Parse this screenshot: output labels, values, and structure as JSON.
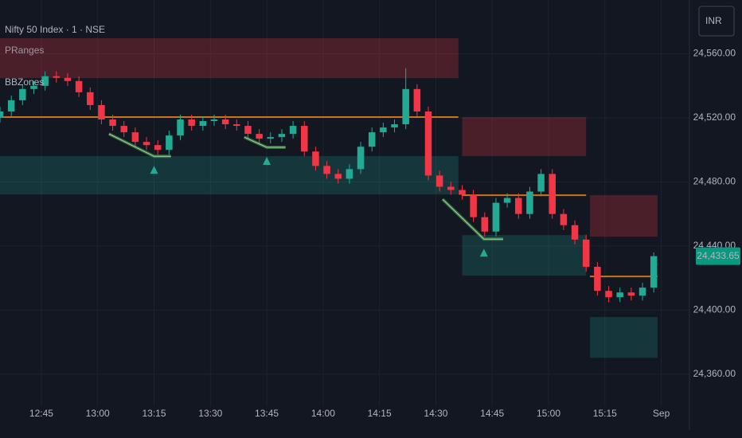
{
  "chart_data": {
    "type": "candlestick",
    "title": "Nifty 50 Index · 1 · NSE",
    "indicators": [
      "PRanges",
      "BBZones"
    ],
    "currency": "INR",
    "up_color": "#22ab94",
    "down_color": "#f23645",
    "x": [
      754,
      757,
      760,
      763,
      766,
      769,
      772,
      775,
      778,
      781,
      784,
      787,
      790,
      793,
      796,
      799,
      802,
      805,
      808,
      811,
      814,
      817,
      820,
      823,
      826,
      829,
      832,
      835,
      838,
      841,
      844,
      847,
      850,
      853,
      856,
      859,
      862,
      865,
      868,
      871,
      874,
      877,
      880,
      883,
      886,
      889,
      892,
      895,
      898,
      901,
      904,
      907,
      910,
      913,
      916,
      919,
      922,
      925,
      928
    ],
    "open": [
      24520,
      24524,
      24531,
      24538,
      24540,
      24546,
      24545,
      24543,
      24536,
      24528,
      24519,
      24515,
      24511,
      24505,
      24503,
      24500,
      24509,
      24519,
      24515,
      24518,
      24519,
      24516,
      24515,
      24510,
      24507,
      24508,
      24510,
      24515,
      24499,
      24490,
      24485,
      24482,
      24488,
      24502,
      24511,
      24514,
      24516,
      24538,
      24524,
      24484,
      24477,
      24475,
      24472,
      24458,
      24449,
      24467,
      24470,
      24460,
      24474,
      24485,
      24460,
      24453,
      24444,
      24427,
      24412,
      24408,
      24411,
      24409,
      24414
    ],
    "high": [
      24527,
      24534,
      24541,
      24543,
      24549,
      24549,
      24548,
      24546,
      24539,
      24531,
      24522,
      24518,
      24514,
      24508,
      24506,
      24512,
      24522,
      24522,
      24521,
      24522,
      24522,
      24519,
      24518,
      24513,
      24511,
      24513,
      24518,
      24518,
      24502,
      24493,
      24488,
      24491,
      24505,
      24514,
      24517,
      24519,
      24551,
      24541,
      24527,
      24487,
      24480,
      24478,
      24475,
      24461,
      24470,
      24473,
      24473,
      24477,
      24488,
      24488,
      24463,
      24456,
      24447,
      24430,
      24415,
      24414,
      24414,
      24417,
      24436
    ],
    "low": [
      24517,
      24521,
      24528,
      24535,
      24537,
      24542,
      24540,
      24533,
      24525,
      24516,
      24512,
      24508,
      24502,
      24500,
      24497,
      24497,
      24506,
      24512,
      24512,
      24515,
      24513,
      24512,
      24507,
      24504,
      24504,
      24505,
      24507,
      24496,
      24487,
      24482,
      24479,
      24479,
      24485,
      24499,
      24508,
      24511,
      24513,
      24521,
      24481,
      24474,
      24472,
      24469,
      24455,
      24446,
      24446,
      24464,
      24457,
      24457,
      24471,
      24457,
      24450,
      24441,
      24424,
      24409,
      24405,
      24405,
      24406,
      24406,
      24411
    ],
    "close": [
      24524,
      24531,
      24538,
      24540,
      24546,
      24545,
      24543,
      24536,
      24528,
      24519,
      24515,
      24511,
      24505,
      24503,
      24500,
      24509,
      24519,
      24515,
      24518,
      24519,
      24516,
      24515,
      24510,
      24507,
      24508,
      24510,
      24515,
      24499,
      24490,
      24485,
      24482,
      24488,
      24502,
      24511,
      24514,
      24516,
      24538,
      24524,
      24484,
      24477,
      24475,
      24472,
      24458,
      24449,
      24467,
      24470,
      24460,
      24474,
      24485,
      24460,
      24453,
      24444,
      24427,
      24412,
      24408,
      24411,
      24409,
      24414,
      24433.65
    ],
    "last_price": {
      "value": 24433.65,
      "label": "24,433.65"
    },
    "last_price_color": "#089981",
    "zones": [
      {
        "x0": 754,
        "x1": 876,
        "y0": 24544.8,
        "y1": 24569.7,
        "color": "rgba(242,54,69,0.25)"
      },
      {
        "x0": 754,
        "x1": 876,
        "y0": 24472.2,
        "y1": 24496.1,
        "color": "rgba(34,171,148,0.22)"
      },
      {
        "x0": 877,
        "x1": 910,
        "y0": 24496.1,
        "y1": 24520.5,
        "color": "rgba(242,54,69,0.25)"
      },
      {
        "x0": 877,
        "x1": 910,
        "y0": 24421.5,
        "y1": 24446.8,
        "color": "rgba(34,171,148,0.22)"
      },
      {
        "x0": 911,
        "x1": 929,
        "y0": 24445.8,
        "y1": 24471.7,
        "color": "rgba(242,54,69,0.25)"
      },
      {
        "x0": 911,
        "x1": 929,
        "y0": 24370.2,
        "y1": 24395.6,
        "color": "rgba(34,171,148,0.22)"
      }
    ],
    "levels": [
      {
        "x0": 754,
        "x1": 876,
        "y": 24520.5
      },
      {
        "x0": 877,
        "x1": 910,
        "y": 24471.7
      },
      {
        "x0": 911,
        "x1": 929,
        "y": 24421
      }
    ],
    "level_color": "#c9731c",
    "signals": [
      {
        "x": [
          783,
          795,
          799.5
        ],
        "y": [
          24510,
          24496,
          24496
        ]
      },
      {
        "x": [
          819,
          825,
          830
        ],
        "y": [
          24508,
          24501.6,
          24501.6
        ]
      },
      {
        "x": [
          871.8,
          882.8,
          887.9
        ],
        "y": [
          24469.2,
          24444.3,
          24444.3
        ]
      }
    ],
    "signal_color": "#4caf50",
    "xlim": [
      754,
      937.5
    ],
    "xticks": [
      {
        "value": 765,
        "label": "12:45"
      },
      {
        "value": 780,
        "label": "13:00"
      },
      {
        "value": 795,
        "label": "13:15"
      },
      {
        "value": 810,
        "label": "13:30"
      },
      {
        "value": 825,
        "label": "13:45"
      },
      {
        "value": 840,
        "label": "14:00"
      },
      {
        "value": 855,
        "label": "14:15"
      },
      {
        "value": 870,
        "label": "14:30"
      },
      {
        "value": 885,
        "label": "14:45"
      },
      {
        "value": 900,
        "label": "15:00"
      },
      {
        "value": 915,
        "label": "15:15"
      },
      {
        "value": 930,
        "label": "Sep"
      }
    ],
    "ylim": [
      24340,
      24593.6
    ],
    "yticks": [
      {
        "value": 24360,
        "label": "24,360.00"
      },
      {
        "value": 24400,
        "label": "24,400.00"
      },
      {
        "value": 24440,
        "label": "24,440.00"
      },
      {
        "value": 24480,
        "label": "24,480.00"
      },
      {
        "value": 24520,
        "label": "24,520.00"
      },
      {
        "value": 24560,
        "label": "24,560.00"
      }
    ],
    "grid": true
  }
}
